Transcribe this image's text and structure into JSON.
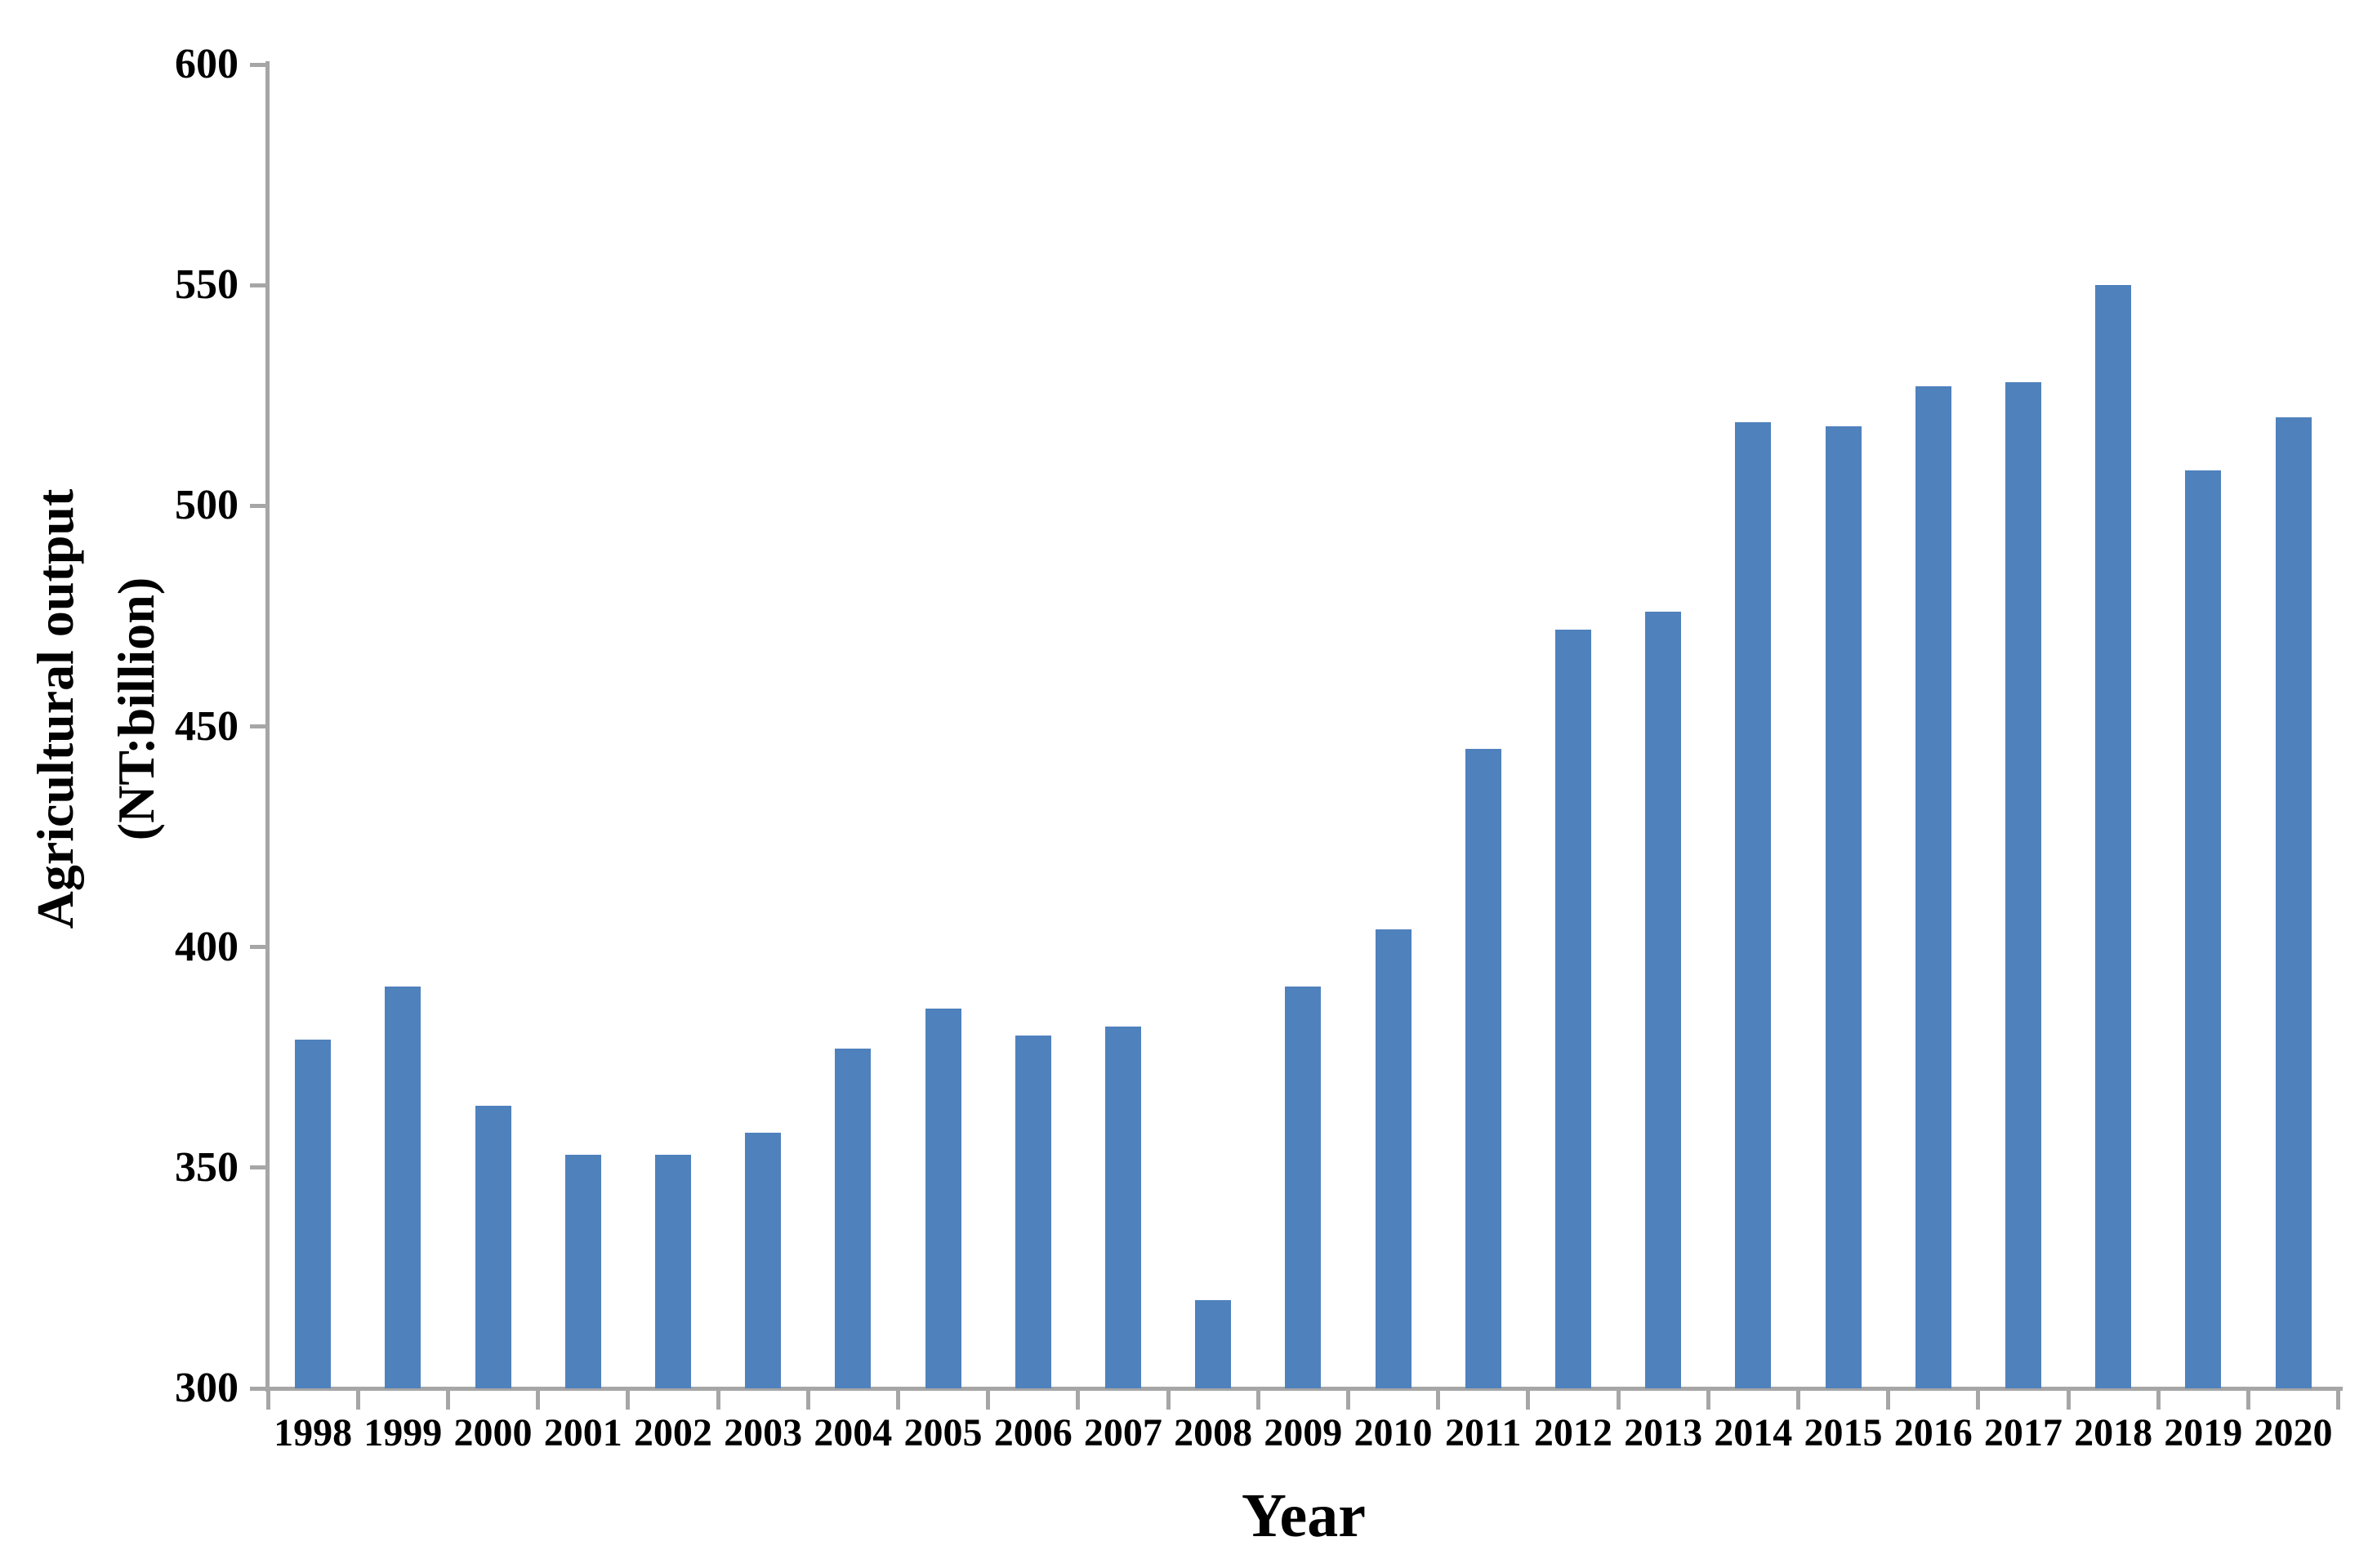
{
  "chart_data": {
    "type": "bar",
    "title": "",
    "categories": [
      "1998",
      "1999",
      "2000",
      "2001",
      "2002",
      "2003",
      "2004",
      "2005",
      "2006",
      "2007",
      "2008",
      "2009",
      "2010",
      "2011",
      "2012",
      "2013",
      "2014",
      "2015",
      "2016",
      "2017",
      "2018",
      "2019",
      "2020"
    ],
    "values": [
      379,
      391,
      364,
      353,
      353,
      358,
      377,
      386,
      380,
      382,
      320,
      391,
      404,
      445,
      472,
      476,
      519,
      518,
      527,
      528,
      550,
      508,
      520
    ],
    "xlabel": "Year",
    "ylabel": "Agricultural output (NT:billion)",
    "ylabel_lines": [
      "Agricultural output",
      "(NT:billion)"
    ],
    "yticks": [
      600,
      550,
      500,
      450,
      400,
      350,
      300
    ],
    "ylim": [
      300,
      600
    ],
    "ytick_step": 50,
    "grid": false,
    "legend": null,
    "bar_color": "#4F81BD",
    "axis_color": "#A6A6A6",
    "text_color": "#000000"
  }
}
